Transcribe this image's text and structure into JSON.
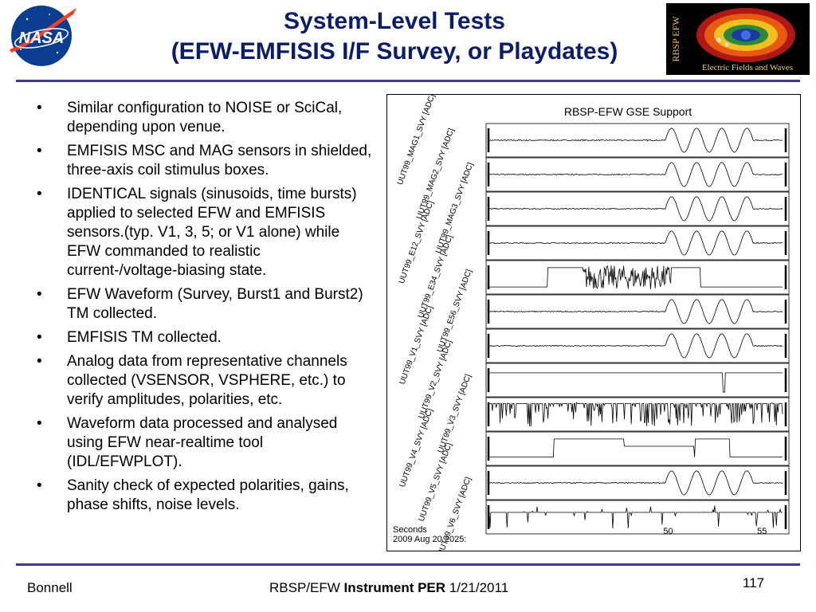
{
  "slide": {
    "title_line1": "System-Level Tests",
    "title_line2": "(EFW-EMFISIS I/F Survey, or Playdates)",
    "bullets": [
      "Similar configuration to NOISE or SciCal, depending upon venue.",
      "EMFISIS MSC and MAG sensors in shielded, three-axis coil stimulus boxes.",
      "IDENTICAL signals (sinusoids, time bursts) applied to selected EFW and EMFISIS sensors.(typ. V1, 3, 5; or V1 alone) while EFW commanded to realistic current-/voltage-biasing state.",
      "EFW Waveform (Survey, Burst1 and Burst2) TM collected.",
      "EMFISIS TM collected.",
      "Analog data from representative channels collected (VSENSOR, VSPHERE, etc.) to verify amplitudes, polarities, etc.",
      "Waveform data processed and analysed using EFW near-realtime tool (IDL/EFWPLOT).",
      "Sanity check of expected polarities, gains, phase shifts, noise levels."
    ],
    "bullet_glyph": "•"
  },
  "logos": {
    "nasa_text": "NASA",
    "efw_side_text": "RBSP EFW",
    "efw_caption": "Electric Fields and Waves"
  },
  "plot": {
    "title": "RBSP-EFW GSE Support",
    "panels": [
      {
        "label": "UUT99_MAG1_SVY [ADC]",
        "signal": "sine"
      },
      {
        "label": "UUT99_MAG2_SVY [ADC]",
        "signal": "sine"
      },
      {
        "label": "UUT99_MAG3_SVY [ADC]",
        "signal": "sine"
      },
      {
        "label": "UUT99_E12_SVY [ADC]",
        "signal": "sine"
      },
      {
        "label": "UUT99_E34_SVY [ADC]",
        "signal": "noise-burst"
      },
      {
        "label": "UUT99_E56_SVY [ADC]",
        "signal": "sine"
      },
      {
        "label": "UUT99_V1_SVY [ADC]",
        "signal": "sine"
      },
      {
        "label": "UUT99_V2_SVY [ADC]",
        "signal": "flat-spike"
      },
      {
        "label": "UUT99_V3_SVY [ADC]",
        "signal": "noise"
      },
      {
        "label": "UUT99_V4_SVY [ADC]",
        "signal": "steps"
      },
      {
        "label": "UUT99_V5_SVY [ADC]",
        "signal": "sine"
      },
      {
        "label": "UUT99_V6_SVY [ADC]",
        "signal": "spikes"
      }
    ],
    "x_axis_label": "Seconds",
    "x_axis_date": "2009 Aug 20 2025:",
    "x_ticks": [
      "50",
      "55"
    ]
  },
  "footer": {
    "author": "Bonnell",
    "center_prefix": "RBSP/EFW",
    "center_bold": "Instrument PER",
    "center_date": "1/21/2011",
    "page_number": "117"
  },
  "colors": {
    "title": "#0b1c6b",
    "rule": "#3b3c8c",
    "nasa_blue": "#0b3d91",
    "nasa_red": "#fc3d21"
  }
}
